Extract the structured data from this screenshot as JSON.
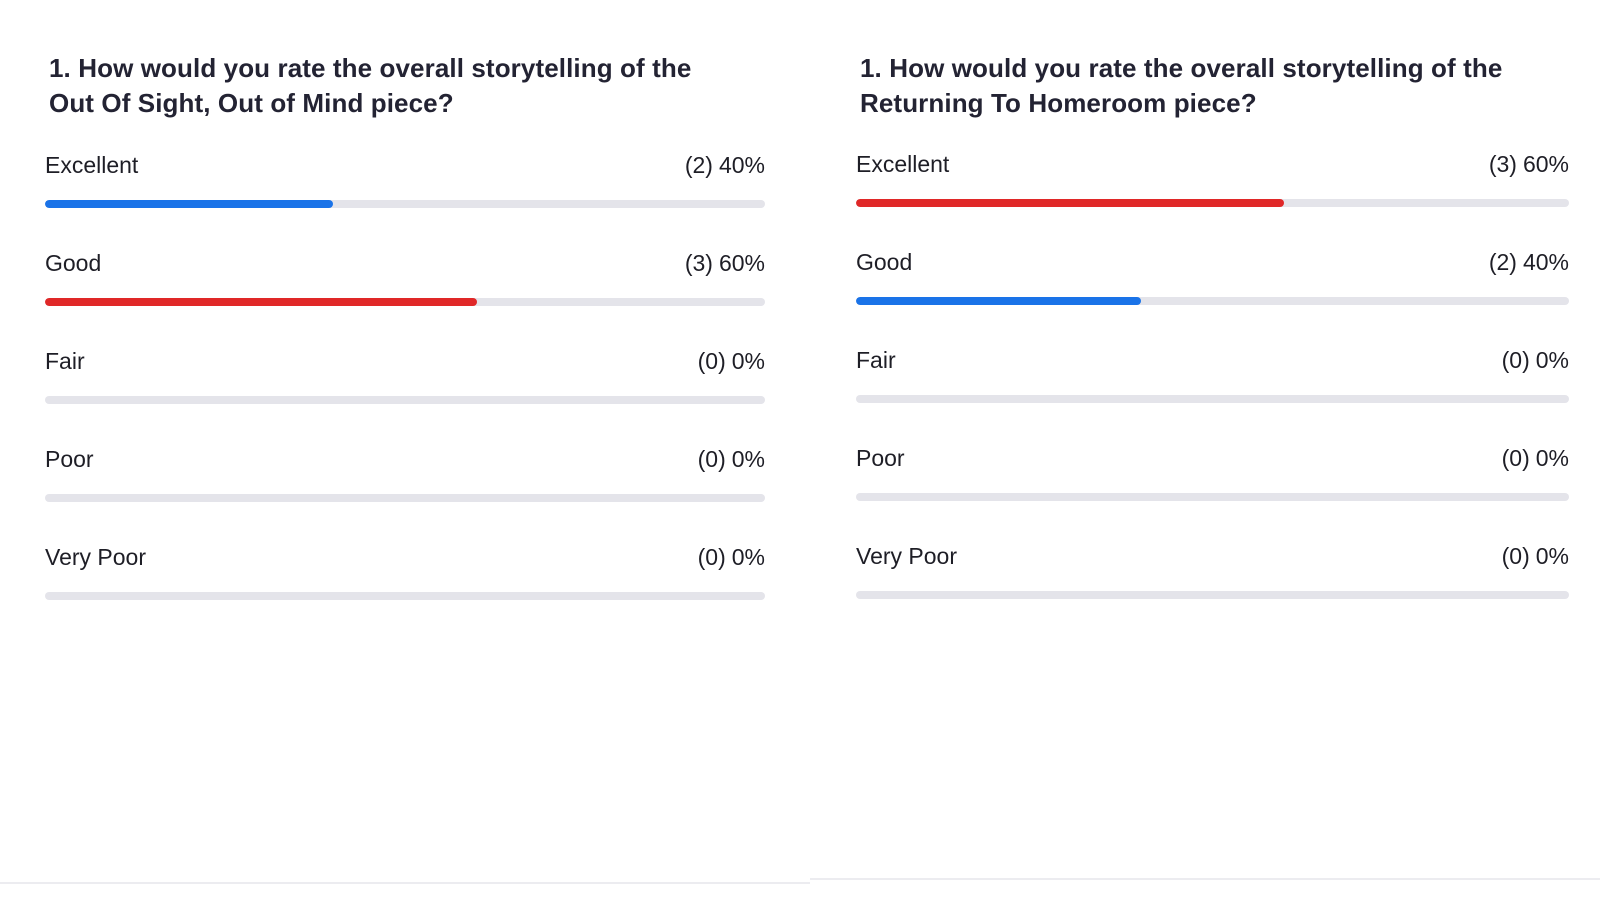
{
  "colors": {
    "blue": "#1a73e8",
    "red": "#e02828",
    "track": "#e4e4ea"
  },
  "polls": [
    {
      "question_line1": "1. How would you rate the overall storytelling of the",
      "question_line2": "Out Of Sight, Out of Mind piece?",
      "options": [
        {
          "label": "Excellent",
          "count": "(2)",
          "percent": "40%",
          "fraction": 0.4,
          "color": "blue"
        },
        {
          "label": "Good",
          "count": "(3)",
          "percent": "60%",
          "fraction": 0.6,
          "color": "red"
        },
        {
          "label": "Fair",
          "count": "(0)",
          "percent": "0%",
          "fraction": 0,
          "color": "blue"
        },
        {
          "label": "Poor",
          "count": "(0)",
          "percent": "0%",
          "fraction": 0,
          "color": "blue"
        },
        {
          "label": "Very Poor",
          "count": "(0)",
          "percent": "0%",
          "fraction": 0,
          "color": "blue"
        }
      ]
    },
    {
      "question_line1": "1. How would you rate the overall storytelling of the",
      "question_line2": "Returning To Homeroom piece?",
      "options": [
        {
          "label": "Excellent",
          "count": "(3)",
          "percent": "60%",
          "fraction": 0.6,
          "color": "red"
        },
        {
          "label": "Good",
          "count": "(2)",
          "percent": "40%",
          "fraction": 0.4,
          "color": "blue"
        },
        {
          "label": "Fair",
          "count": "(0)",
          "percent": "0%",
          "fraction": 0,
          "color": "blue"
        },
        {
          "label": "Poor",
          "count": "(0)",
          "percent": "0%",
          "fraction": 0,
          "color": "blue"
        },
        {
          "label": "Very Poor",
          "count": "(0)",
          "percent": "0%",
          "fraction": 0,
          "color": "blue"
        }
      ]
    }
  ]
}
